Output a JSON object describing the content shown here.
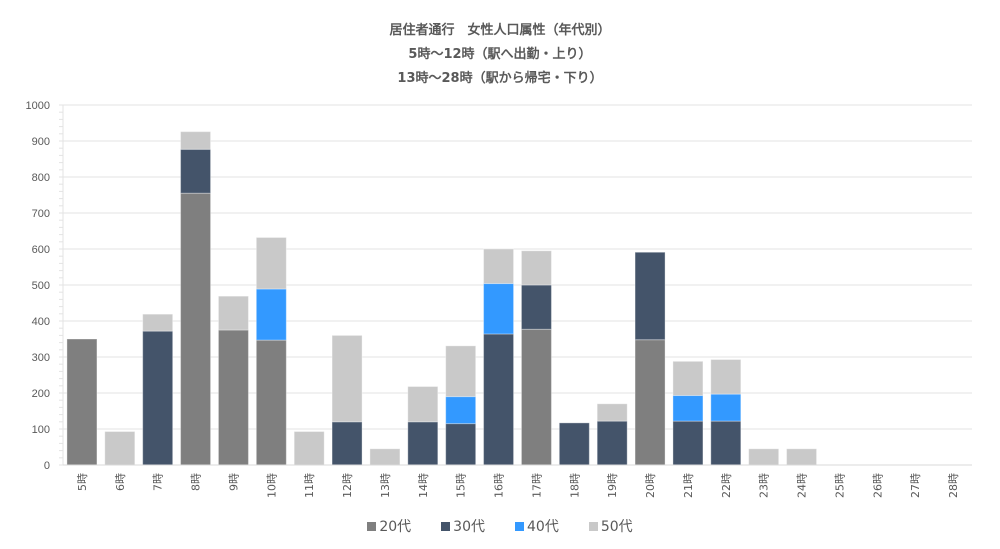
{
  "chart_data": {
    "type": "bar",
    "stacked": true,
    "title": "居住者通行　女性人口属性（年代別）",
    "subtitle_lines": [
      "5時〜12時（駅へ出勤・上り）",
      "13時〜28時（駅から帰宅・下り）"
    ],
    "xlabel": "",
    "ylabel": "",
    "ylim": [
      0,
      1000
    ],
    "yticks": [
      0,
      100,
      200,
      300,
      400,
      500,
      600,
      700,
      800,
      900,
      1000
    ],
    "grid": true,
    "legend_position": "bottom",
    "categories": [
      "5時",
      "6時",
      "7時",
      "8時",
      "9時",
      "10時",
      "11時",
      "12時",
      "13時",
      "14時",
      "15時",
      "16時",
      "17時",
      "18時",
      "19時",
      "20時",
      "21時",
      "22時",
      "23時",
      "24時",
      "25時",
      "26時",
      "27時",
      "28時"
    ],
    "series": [
      {
        "name": "20代",
        "color": "#7f7f7f",
        "values": [
          350,
          0,
          0,
          755,
          375,
          347,
          0,
          0,
          0,
          0,
          0,
          0,
          377,
          0,
          0,
          348,
          0,
          0,
          0,
          0,
          0,
          0,
          0,
          0
        ]
      },
      {
        "name": "30代",
        "color": "#44546a",
        "values": [
          0,
          0,
          372,
          122,
          0,
          0,
          0,
          120,
          0,
          120,
          115,
          364,
          123,
          117,
          122,
          243,
          122,
          122,
          0,
          0,
          0,
          0,
          0,
          0
        ]
      },
      {
        "name": "40代",
        "color": "#3399ff",
        "values": [
          0,
          0,
          0,
          0,
          0,
          142,
          0,
          0,
          0,
          0,
          75,
          140,
          0,
          0,
          0,
          0,
          71,
          75,
          0,
          0,
          0,
          0,
          0,
          0
        ]
      },
      {
        "name": "50代",
        "color": "#c9c9c9",
        "values": [
          0,
          93,
          47,
          49,
          94,
          143,
          93,
          240,
          45,
          98,
          141,
          96,
          95,
          0,
          48,
          0,
          95,
          96,
          45,
          45,
          0,
          0,
          0,
          0
        ]
      }
    ]
  },
  "header": {
    "title": "居住者通行　女性人口属性（年代別）",
    "line2": "5時〜12時（駅へ出勤・上り）",
    "line3": "13時〜28時（駅から帰宅・下り）"
  },
  "legend": [
    {
      "label": "20代",
      "color": "#7f7f7f"
    },
    {
      "label": "30代",
      "color": "#44546a"
    },
    {
      "label": "40代",
      "color": "#3399ff"
    },
    {
      "label": "50代",
      "color": "#c9c9c9"
    }
  ]
}
